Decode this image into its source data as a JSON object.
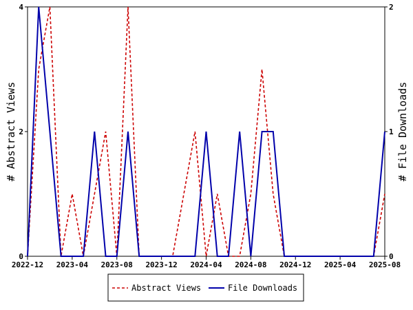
{
  "chart_data": {
    "type": "line",
    "x": [
      "2022-12",
      "2023-01",
      "2023-02",
      "2023-03",
      "2023-04",
      "2023-05",
      "2023-06",
      "2023-07",
      "2023-08",
      "2023-09",
      "2023-10",
      "2023-11",
      "2023-12",
      "2024-01",
      "2024-02",
      "2024-03",
      "2024-04",
      "2024-05",
      "2024-06",
      "2024-07",
      "2024-08",
      "2024-09",
      "2024-10",
      "2024-11",
      "2024-12",
      "2025-01",
      "2025-02",
      "2025-03",
      "2025-04",
      "2025-05",
      "2025-06",
      "2025-07",
      "2025-08"
    ],
    "x_tick_labels": [
      "2022-12",
      "2023-04",
      "2023-08",
      "2023-12",
      "2024-04",
      "2024-08",
      "2024-12",
      "2025-04",
      "2025-08"
    ],
    "series": [
      {
        "name": "Abstract Views",
        "axis": "left",
        "color": "#cc0000",
        "style": "dashed",
        "values": [
          0,
          3,
          4,
          0,
          1,
          0,
          1,
          2,
          0,
          4,
          0,
          0,
          0,
          0,
          1,
          2,
          0,
          1,
          0,
          0,
          1,
          3,
          1,
          0,
          0,
          0,
          0,
          0,
          0,
          0,
          0,
          0,
          1
        ]
      },
      {
        "name": "File Downloads",
        "axis": "right",
        "color": "#0000aa",
        "style": "solid",
        "values": [
          0,
          2,
          1,
          0,
          0,
          0,
          1,
          0,
          0,
          1,
          0,
          0,
          0,
          0,
          0,
          0,
          1,
          0,
          0,
          1,
          0,
          1,
          1,
          0,
          0,
          0,
          0,
          0,
          0,
          0,
          0,
          0,
          1
        ]
      }
    ],
    "ylabel_left": "# Abstract Views",
    "ylabel_right": "# File Downloads",
    "ylim_left": [
      0,
      4
    ],
    "ylim_right": [
      0,
      2
    ],
    "yticks_left": [
      "0",
      "2",
      "4"
    ],
    "yticks_right": [
      "0",
      "1",
      "2"
    ],
    "legend": "bottom-center",
    "grid": false
  }
}
